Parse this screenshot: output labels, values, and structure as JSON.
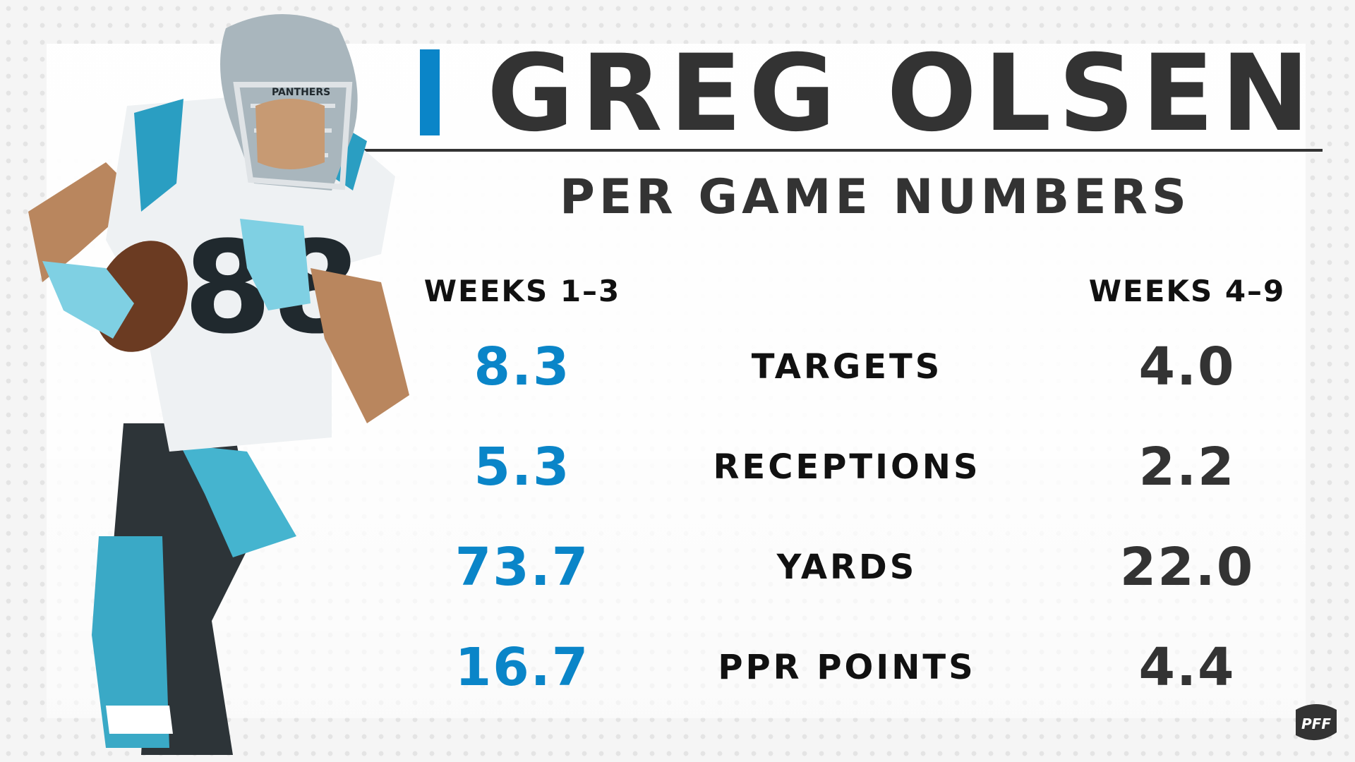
{
  "colors": {
    "accent": "#0a85c8",
    "dark": "#333333",
    "teal": "#53b6cf"
  },
  "header": {
    "player_name": "GREG OLSEN",
    "subtitle": "PER GAME NUMBERS"
  },
  "columns": {
    "left": "WEEKS 1–3",
    "right": "WEEKS 4–9"
  },
  "chart_data": {
    "type": "table",
    "title": "GREG OLSEN",
    "subtitle": "PER GAME NUMBERS",
    "columns": [
      "WEEKS 1–3",
      "",
      "WEEKS 4–9"
    ],
    "rows": [
      {
        "label": "TARGETS",
        "weeks_1_3": "8.3",
        "weeks_4_9": "4.0"
      },
      {
        "label": "RECEPTIONS",
        "weeks_1_3": "5.3",
        "weeks_4_9": "2.2"
      },
      {
        "label": "YARDS",
        "weeks_1_3": "73.7",
        "weeks_4_9": "22.0"
      },
      {
        "label": "PPR POINTS",
        "weeks_1_3": "16.7",
        "weeks_4_9": "4.4"
      }
    ]
  },
  "player": {
    "jersey_number": "88",
    "helmet_text": "PANTHERS"
  },
  "logo": {
    "text": "PFF"
  }
}
